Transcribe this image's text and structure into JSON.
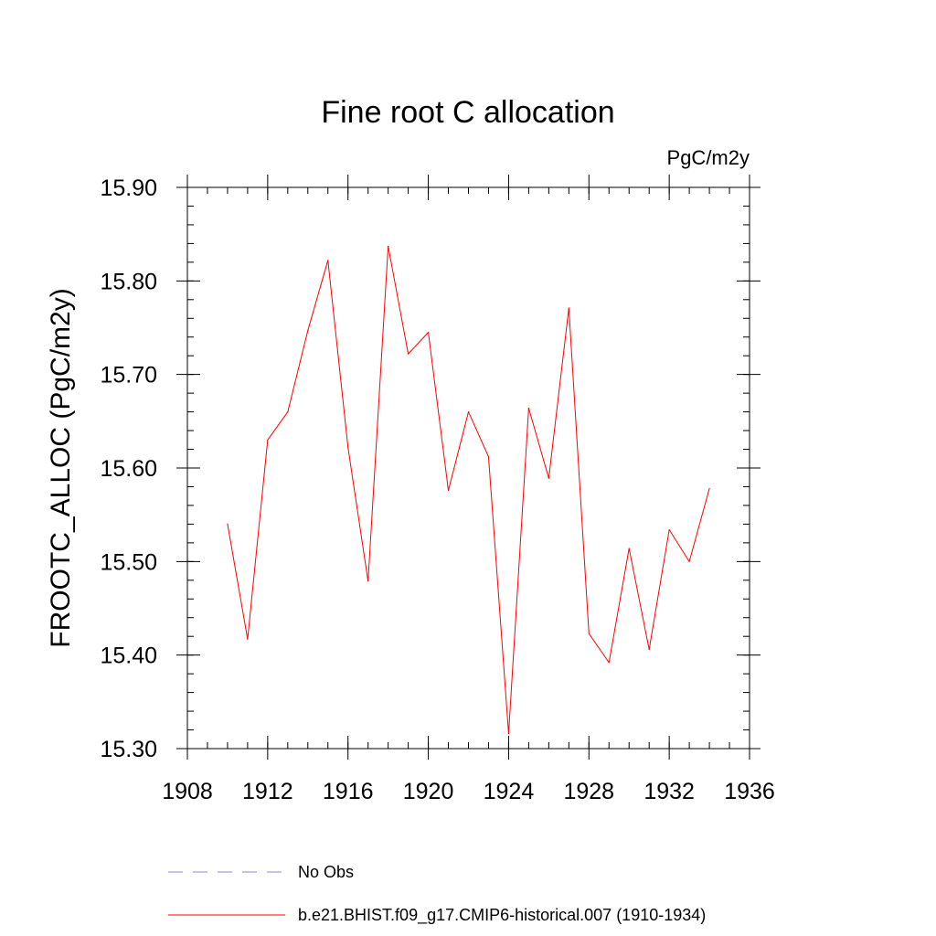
{
  "chart_data": {
    "type": "line",
    "title": "Fine root C allocation",
    "units_label": "PgC/m2y",
    "ylabel": "FROOTC_ALLOC  (PgC/m2y)",
    "xlabel": "",
    "xlim": [
      1908,
      1936
    ],
    "ylim": [
      15.3,
      15.9
    ],
    "x_ticks": [
      1908,
      1912,
      1916,
      1920,
      1924,
      1928,
      1932,
      1936
    ],
    "x_tick_labels": [
      "1908",
      "1912",
      "1916",
      "1920",
      "1924",
      "1928",
      "1932",
      "1936"
    ],
    "x_minor_step": 1,
    "y_ticks": [
      15.3,
      15.4,
      15.5,
      15.6,
      15.7,
      15.8,
      15.9
    ],
    "y_tick_labels": [
      "15.30",
      "15.40",
      "15.50",
      "15.60",
      "15.70",
      "15.80",
      "15.90"
    ],
    "y_minor_step": 0.02,
    "grid": false,
    "series": [
      {
        "name": "b.e21.BHIST.f09_g17.CMIP6-historical.007 (1910-1934)",
        "color": "#ff0000",
        "style": "solid",
        "x": [
          1910,
          1911,
          1912,
          1913,
          1914,
          1915,
          1916,
          1917,
          1918,
          1919,
          1920,
          1921,
          1922,
          1923,
          1924,
          1925,
          1926,
          1927,
          1928,
          1929,
          1930,
          1931,
          1932,
          1933,
          1934
        ],
        "values": [
          15.54,
          15.417,
          15.63,
          15.66,
          15.747,
          15.822,
          15.622,
          15.479,
          15.837,
          15.722,
          15.745,
          15.576,
          15.66,
          15.612,
          15.316,
          15.664,
          15.589,
          15.771,
          15.423,
          15.392,
          15.514,
          15.406,
          15.534,
          15.5,
          15.578
        ]
      }
    ],
    "legend": {
      "placement": "bottom",
      "entries": [
        {
          "label": "No Obs",
          "color": "#8a8ad6",
          "style": "dashed"
        },
        {
          "label": "b.e21.BHIST.f09_g17.CMIP6-historical.007 (1910-1934)",
          "color": "#ff0000",
          "style": "solid"
        }
      ]
    }
  }
}
